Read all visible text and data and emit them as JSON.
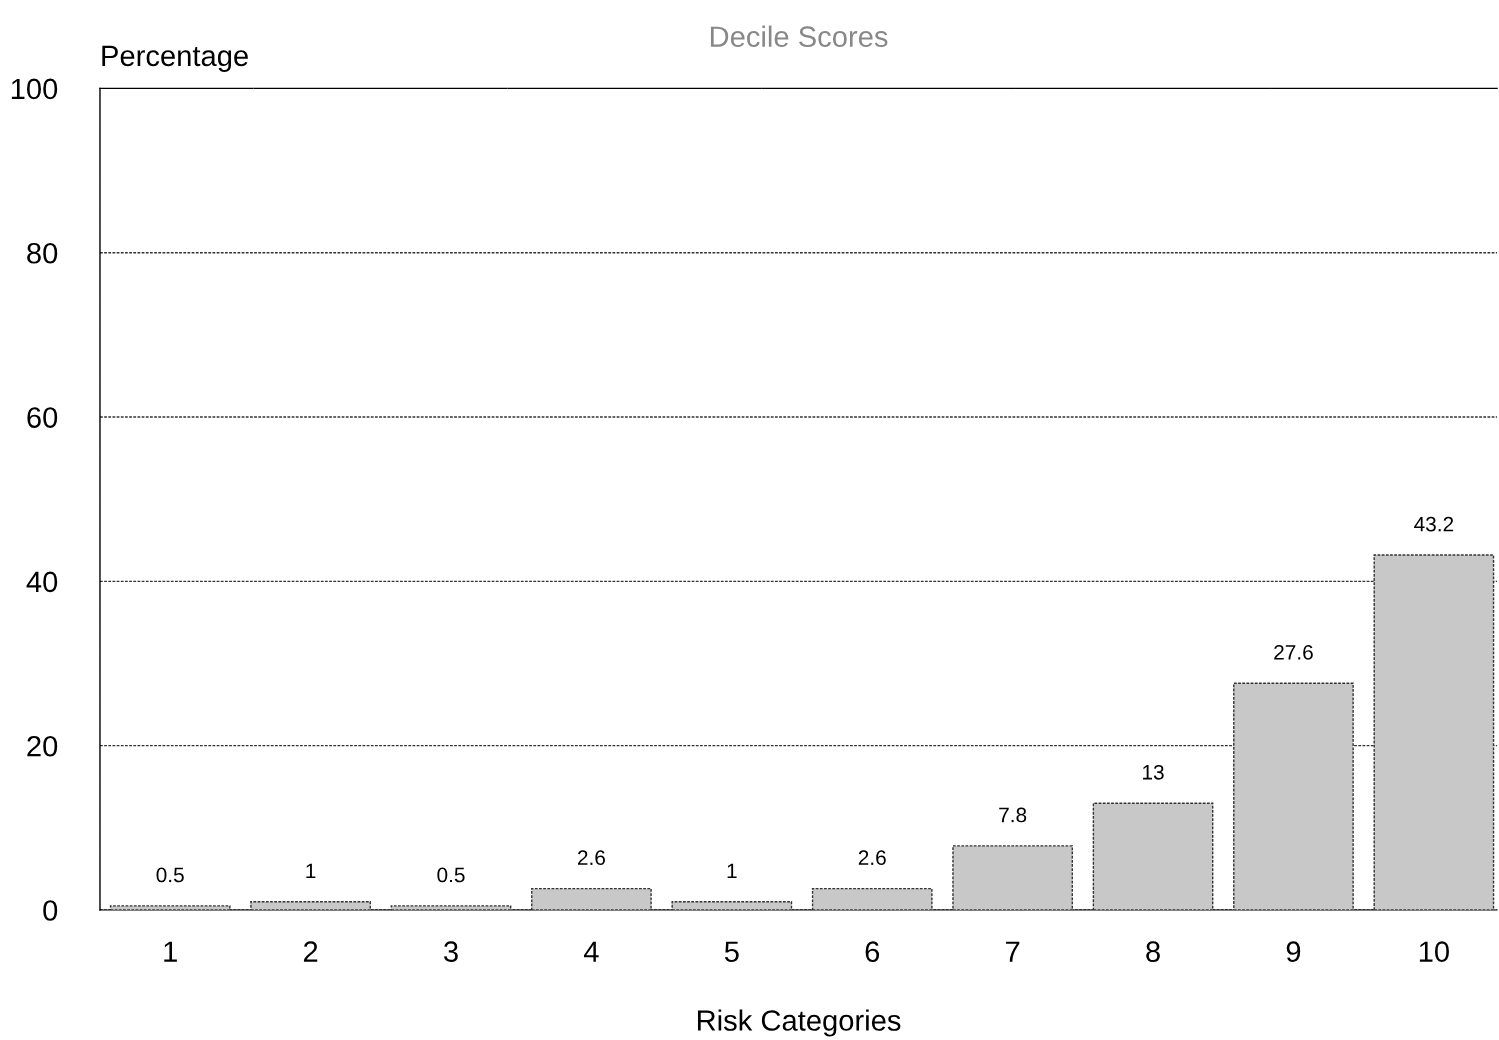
{
  "chart_data": {
    "type": "bar",
    "title": "Decile Scores",
    "xlabel": "Risk Categories",
    "ylabel": "Percentage",
    "categories": [
      "1",
      "2",
      "3",
      "4",
      "5",
      "6",
      "7",
      "8",
      "9",
      "10"
    ],
    "values": [
      0.5,
      1,
      0.5,
      2.6,
      1,
      2.6,
      7.8,
      13,
      27.6,
      43.2
    ],
    "color": "#c8c8c8",
    "ylim": [
      0,
      100
    ],
    "yticks": [
      0,
      20,
      40,
      60,
      80,
      100
    ],
    "grid": "y",
    "data_labels": true,
    "legend": false
  }
}
